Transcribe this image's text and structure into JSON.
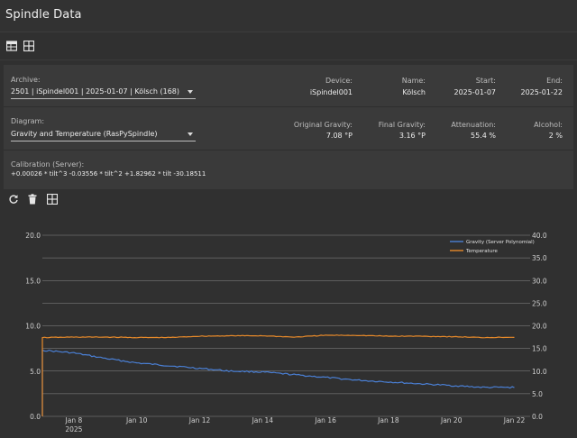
{
  "page": {
    "title": "Spindle Data"
  },
  "toolbar": {
    "icons": [
      "table-icon",
      "grid-icon"
    ]
  },
  "archive": {
    "label": "Archive:",
    "value": "2501 | iSpindel001 | 2025-01-07 | Kölsch (168)",
    "device_label": "Device:",
    "device": "iSpindel001",
    "name_label": "Name:",
    "name": "Kölsch",
    "start_label": "Start:",
    "start": "2025-01-07",
    "end_label": "End:",
    "end": "2025-01-22"
  },
  "diagram": {
    "label": "Diagram:",
    "value": "Gravity and Temperature (RasPySpindle)",
    "og_label": "Original Gravity:",
    "og": "7.08 °P",
    "fg_label": "Final Gravity:",
    "fg": "3.16 °P",
    "att_label": "Attenuation:",
    "att": "55.4 %",
    "alc_label": "Alcohol:",
    "alc": "2 %"
  },
  "calibration": {
    "label": "Calibration (Server):",
    "formula": "+0.00026 * tilt^3 -0.03556 * tilt^2 +1.82962 * tilt -30.18511"
  },
  "actions": {
    "icons": [
      "refresh-icon",
      "delete-icon",
      "grid-icon"
    ]
  },
  "chart_data": {
    "type": "line",
    "x_ticks": [
      "Jan 8",
      "Jan 10",
      "Jan 12",
      "Jan 14",
      "Jan 16",
      "Jan 18",
      "Jan 20",
      "Jan 22"
    ],
    "x_year_label": "2025",
    "y_left_ticks": [
      "0.0",
      "5.0",
      "10.0",
      "15.0",
      "20.0"
    ],
    "y_right_ticks": [
      "0.0",
      "5.0",
      "10.0",
      "15.0",
      "20.0",
      "25.0",
      "30.0",
      "35.0",
      "40.0"
    ],
    "ylim_left": [
      0,
      20
    ],
    "ylim_right": [
      0,
      40
    ],
    "legend_position": "top-right",
    "series": [
      {
        "name": "Gravity (Server Polynomial)",
        "axis": "left",
        "color": "#4a7fd4",
        "x": [
          "2025-01-07",
          "2025-01-07",
          "2025-01-08",
          "2025-01-09",
          "2025-01-10",
          "2025-01-11",
          "2025-01-12",
          "2025-01-13",
          "2025-01-14",
          "2025-01-15",
          "2025-01-16",
          "2025-01-17",
          "2025-01-18",
          "2025-01-19",
          "2025-01-20",
          "2025-01-21",
          "2025-01-22"
        ],
        "y": [
          0.0,
          7.3,
          7.0,
          6.4,
          5.9,
          5.6,
          5.3,
          5.0,
          4.9,
          4.6,
          4.3,
          4.0,
          3.8,
          3.6,
          3.4,
          3.2,
          3.2
        ]
      },
      {
        "name": "Temperature",
        "axis": "right",
        "color": "#e88a2a",
        "x": [
          "2025-01-07",
          "2025-01-07",
          "2025-01-08",
          "2025-01-09",
          "2025-01-10",
          "2025-01-11",
          "2025-01-12",
          "2025-01-13",
          "2025-01-14",
          "2025-01-15",
          "2025-01-16",
          "2025-01-17",
          "2025-01-18",
          "2025-01-19",
          "2025-01-20",
          "2025-01-21",
          "2025-01-22"
        ],
        "y": [
          0.0,
          17.4,
          17.5,
          17.5,
          17.4,
          17.4,
          17.7,
          17.8,
          17.8,
          17.5,
          17.9,
          17.9,
          17.7,
          17.7,
          17.6,
          17.4,
          17.5
        ]
      }
    ]
  }
}
